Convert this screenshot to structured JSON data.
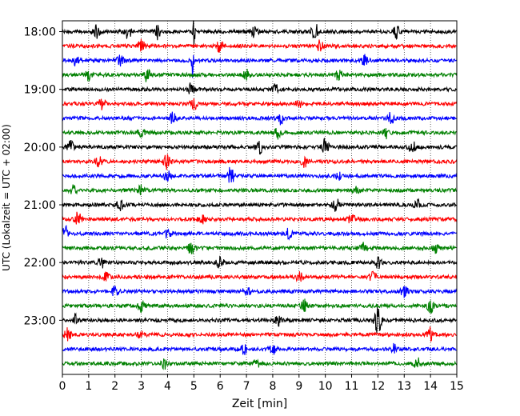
{
  "chart_data": {
    "type": "line",
    "xlabel": "Zeit  [min]",
    "ylabel": "UTC (Lokalzeit = UTC + 02:00)",
    "xlim": [
      0,
      15
    ],
    "x_ticks": [
      "0",
      "1",
      "2",
      "3",
      "4",
      "5",
      "6",
      "7",
      "8",
      "9",
      "10",
      "11",
      "12",
      "13",
      "14",
      "15"
    ],
    "y_ticks": [
      "18:00",
      "19:00",
      "20:00",
      "21:00",
      "22:00",
      "23:00"
    ],
    "grid": "vertical dotted",
    "trace_colors": [
      "#000000",
      "#ff0000",
      "#0000ff",
      "#008000"
    ],
    "traces": [
      {
        "time": "18:00",
        "events": [
          {
            "t": 1.3,
            "a": 0.45
          },
          {
            "t": 2.5,
            "a": 0.4
          },
          {
            "t": 3.6,
            "a": 0.4
          },
          {
            "t": 5.0,
            "a": 1.0
          },
          {
            "t": 7.3,
            "a": 0.4
          },
          {
            "t": 9.6,
            "a": 0.5
          },
          {
            "t": 12.7,
            "a": 0.4
          }
        ]
      },
      {
        "time": "18:15",
        "events": [
          {
            "t": 3.0,
            "a": 0.4
          },
          {
            "t": 6.0,
            "a": 0.35
          },
          {
            "t": 9.8,
            "a": 0.3
          }
        ]
      },
      {
        "time": "18:30",
        "events": [
          {
            "t": 4.95,
            "a": 1.0
          },
          {
            "t": 0.5,
            "a": 0.25
          },
          {
            "t": 2.2,
            "a": 0.25
          },
          {
            "t": 11.5,
            "a": 0.3
          }
        ]
      },
      {
        "time": "18:45",
        "events": [
          {
            "t": 3.2,
            "a": 0.4
          },
          {
            "t": 10.5,
            "a": 0.4
          },
          {
            "t": 1.0,
            "a": 0.3
          },
          {
            "t": 7.0,
            "a": 0.3
          }
        ]
      },
      {
        "time": "19:00",
        "events": [
          {
            "t": 4.9,
            "a": 0.4
          },
          {
            "t": 8.1,
            "a": 0.25
          }
        ]
      },
      {
        "time": "19:15",
        "events": [
          {
            "t": 1.5,
            "a": 0.3
          },
          {
            "t": 5.0,
            "a": 0.3
          },
          {
            "t": 9.0,
            "a": 0.25
          }
        ]
      },
      {
        "time": "19:30",
        "events": [
          {
            "t": 4.2,
            "a": 0.3
          },
          {
            "t": 8.3,
            "a": 0.3
          },
          {
            "t": 12.5,
            "a": 0.35
          }
        ]
      },
      {
        "time": "19:45",
        "events": [
          {
            "t": 3.0,
            "a": 0.3
          },
          {
            "t": 8.2,
            "a": 0.3
          },
          {
            "t": 12.3,
            "a": 0.3
          }
        ]
      },
      {
        "time": "20:00",
        "events": [
          {
            "t": 0.3,
            "a": 0.35
          },
          {
            "t": 7.5,
            "a": 0.4
          },
          {
            "t": 10.0,
            "a": 0.45
          },
          {
            "t": 13.3,
            "a": 0.35
          }
        ]
      },
      {
        "time": "20:15",
        "events": [
          {
            "t": 4.0,
            "a": 0.5
          },
          {
            "t": 1.4,
            "a": 0.3
          },
          {
            "t": 9.2,
            "a": 0.3
          }
        ]
      },
      {
        "time": "20:30",
        "events": [
          {
            "t": 6.4,
            "a": 0.5
          },
          {
            "t": 4.0,
            "a": 0.3
          },
          {
            "t": 10.5,
            "a": 0.25
          }
        ]
      },
      {
        "time": "20:45",
        "events": [
          {
            "t": 3.0,
            "a": 0.3
          },
          {
            "t": 0.4,
            "a": 0.3
          },
          {
            "t": 11.2,
            "a": 0.25
          }
        ]
      },
      {
        "time": "21:00",
        "events": [
          {
            "t": 2.2,
            "a": 0.35
          },
          {
            "t": 10.4,
            "a": 0.45
          },
          {
            "t": 13.5,
            "a": 0.3
          }
        ]
      },
      {
        "time": "21:15",
        "events": [
          {
            "t": 0.6,
            "a": 0.4
          },
          {
            "t": 5.3,
            "a": 0.3
          },
          {
            "t": 11.0,
            "a": 0.3
          }
        ]
      },
      {
        "time": "21:30",
        "events": [
          {
            "t": 0.1,
            "a": 0.45
          },
          {
            "t": 4.0,
            "a": 0.35
          },
          {
            "t": 8.6,
            "a": 0.3
          }
        ]
      },
      {
        "time": "21:45",
        "events": [
          {
            "t": 4.9,
            "a": 0.4
          },
          {
            "t": 11.4,
            "a": 0.35
          },
          {
            "t": 14.2,
            "a": 0.3
          }
        ]
      },
      {
        "time": "22:00",
        "events": [
          {
            "t": 1.5,
            "a": 0.3
          },
          {
            "t": 6.0,
            "a": 0.35
          },
          {
            "t": 12.0,
            "a": 0.3
          }
        ]
      },
      {
        "time": "22:15",
        "events": [
          {
            "t": 1.7,
            "a": 0.3
          },
          {
            "t": 9.0,
            "a": 0.3
          },
          {
            "t": 11.8,
            "a": 0.3
          }
        ]
      },
      {
        "time": "22:30",
        "events": [
          {
            "t": 2.0,
            "a": 0.3
          },
          {
            "t": 7.0,
            "a": 0.3
          },
          {
            "t": 13.0,
            "a": 0.3
          }
        ]
      },
      {
        "time": "22:45",
        "events": [
          {
            "t": 3.0,
            "a": 0.35
          },
          {
            "t": 9.2,
            "a": 0.35
          },
          {
            "t": 14.0,
            "a": 0.35
          }
        ]
      },
      {
        "time": "23:00",
        "events": [
          {
            "t": 12.0,
            "a": 0.8
          },
          {
            "t": 0.5,
            "a": 0.3
          },
          {
            "t": 8.2,
            "a": 0.3
          }
        ]
      },
      {
        "time": "23:15",
        "events": [
          {
            "t": 0.2,
            "a": 0.35
          },
          {
            "t": 3.0,
            "a": 0.3
          },
          {
            "t": 14.0,
            "a": 0.4
          }
        ]
      },
      {
        "time": "23:30",
        "events": [
          {
            "t": 6.9,
            "a": 0.35
          },
          {
            "t": 8.0,
            "a": 0.4
          },
          {
            "t": 12.6,
            "a": 0.3
          }
        ]
      },
      {
        "time": "23:45",
        "events": [
          {
            "t": 3.9,
            "a": 0.3
          },
          {
            "t": 7.4,
            "a": 0.35
          },
          {
            "t": 13.5,
            "a": 0.3
          }
        ]
      }
    ]
  }
}
